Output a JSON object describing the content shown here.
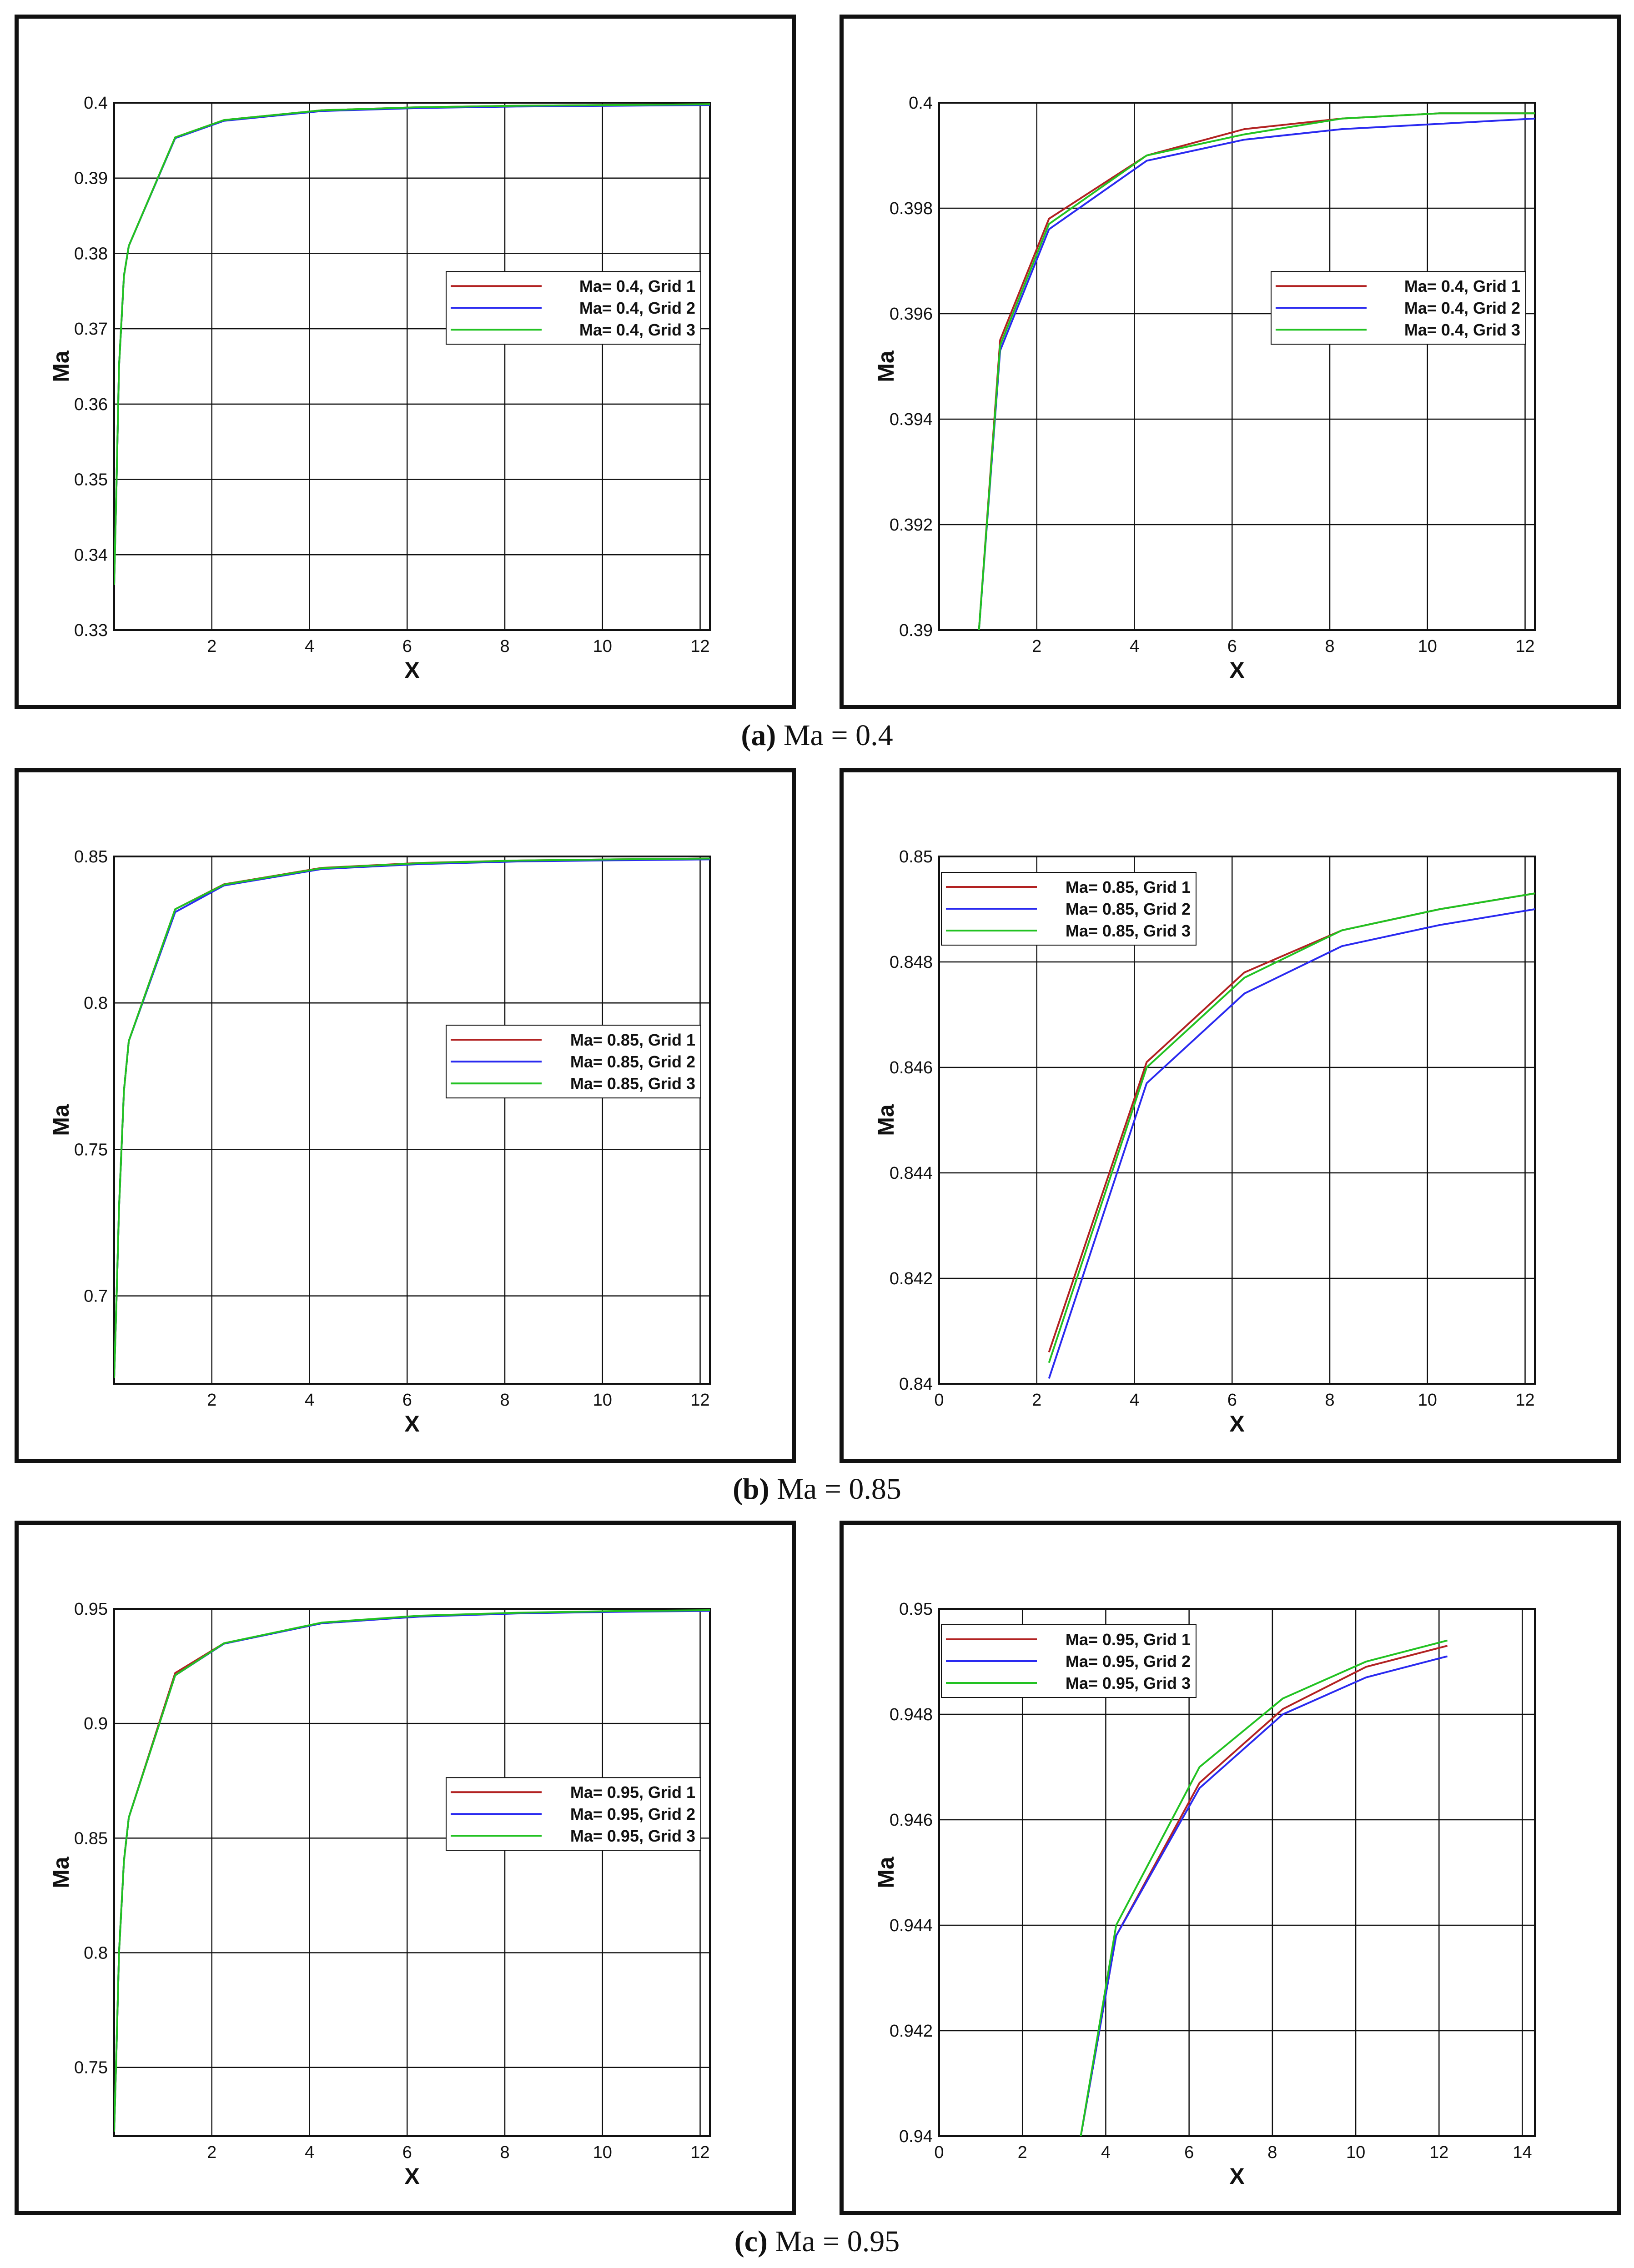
{
  "captions": [
    {
      "letter": "(a)",
      "text": " Ma = 0.4"
    },
    {
      "letter": "(b)",
      "text": " Ma = 0.85"
    },
    {
      "letter": "(c)",
      "text": " Ma = 0.95"
    }
  ],
  "colors": {
    "grid1": "#b22222",
    "grid2": "#2a2af0",
    "grid3": "#22c222"
  },
  "chart_data": [
    {
      "type": "line",
      "xlabel": "X",
      "ylabel": "Ma",
      "xlim": [
        0,
        12.2
      ],
      "ylim": [
        0.33,
        0.4
      ],
      "xticks": [
        "2",
        "4",
        "6",
        "8",
        "10",
        "12"
      ],
      "xtick_values": [
        2,
        4,
        6,
        8,
        10,
        12
      ],
      "yticks": [
        "0.33",
        "0.34",
        "0.35",
        "0.36",
        "0.37",
        "0.38",
        "0.39",
        "0.4"
      ],
      "ytick_values": [
        0.33,
        0.34,
        0.35,
        0.36,
        0.37,
        0.38,
        0.39,
        0.4
      ],
      "legend_position": "right-middle",
      "series": [
        {
          "name": "Ma= 0.4, Grid 1",
          "color": "#b22222",
          "x": [
            0.0,
            0.05,
            0.1,
            0.2,
            0.3,
            1.25,
            2.25,
            4.25,
            6.25,
            8.25,
            10.25,
            12.2
          ],
          "y": [
            0.336,
            0.35,
            0.365,
            0.377,
            0.381,
            0.3954,
            0.3977,
            0.399,
            0.3994,
            0.3996,
            0.3997,
            0.3998
          ]
        },
        {
          "name": "Ma= 0.4, Grid 2",
          "color": "#2a2af0",
          "x": [
            0.0,
            0.05,
            0.1,
            0.2,
            0.3,
            1.25,
            2.25,
            4.25,
            6.25,
            8.25,
            10.25,
            12.2
          ],
          "y": [
            0.336,
            0.35,
            0.365,
            0.377,
            0.381,
            0.3953,
            0.3976,
            0.3989,
            0.3993,
            0.3995,
            0.3996,
            0.3997
          ]
        },
        {
          "name": "Ma= 0.4, Grid 3",
          "color": "#22c222",
          "x": [
            0.0,
            0.05,
            0.1,
            0.2,
            0.3,
            1.25,
            2.25,
            4.25,
            6.25,
            8.25,
            10.25,
            12.2
          ],
          "y": [
            0.336,
            0.35,
            0.365,
            0.377,
            0.381,
            0.3954,
            0.3977,
            0.399,
            0.3994,
            0.3996,
            0.3997,
            0.3998
          ]
        }
      ]
    },
    {
      "type": "line",
      "xlabel": "X",
      "ylabel": "Ma",
      "xlim": [
        0,
        12.2
      ],
      "ylim": [
        0.39,
        0.4
      ],
      "xticks": [
        "2",
        "4",
        "6",
        "8",
        "10",
        "12"
      ],
      "xtick_values": [
        2,
        4,
        6,
        8,
        10,
        12
      ],
      "yticks": [
        "0.39",
        "0.392",
        "0.394",
        "0.396",
        "0.398",
        "0.4"
      ],
      "ytick_values": [
        0.39,
        0.392,
        0.394,
        0.396,
        0.398,
        0.4
      ],
      "legend_position": "right-middle",
      "series": [
        {
          "name": "Ma= 0.4, Grid 1",
          "color": "#b22222",
          "x": [
            0.8,
            1.25,
            2.25,
            4.25,
            6.25,
            8.25,
            10.25,
            12.2
          ],
          "y": [
            0.3898,
            0.3955,
            0.3978,
            0.399,
            0.3995,
            0.3997,
            0.3998,
            0.3998
          ]
        },
        {
          "name": "Ma= 0.4, Grid 2",
          "color": "#2a2af0",
          "x": [
            0.8,
            1.25,
            2.25,
            4.25,
            6.25,
            8.25,
            10.25,
            12.2
          ],
          "y": [
            0.3898,
            0.3953,
            0.3976,
            0.3989,
            0.3993,
            0.3995,
            0.3996,
            0.3997
          ]
        },
        {
          "name": "Ma= 0.4, Grid 3",
          "color": "#22c222",
          "x": [
            0.8,
            1.25,
            2.25,
            4.25,
            6.25,
            8.25,
            10.25,
            12.2
          ],
          "y": [
            0.3898,
            0.3954,
            0.3977,
            0.399,
            0.3994,
            0.3997,
            0.3998,
            0.3998
          ]
        }
      ]
    },
    {
      "type": "line",
      "xlabel": "X",
      "ylabel": "Ma",
      "xlim": [
        0,
        12.2
      ],
      "ylim": [
        0.67,
        0.85
      ],
      "xticks": [
        "2",
        "4",
        "6",
        "8",
        "10",
        "12"
      ],
      "xtick_values": [
        2,
        4,
        6,
        8,
        10,
        12
      ],
      "yticks": [
        "0.7",
        "0.75",
        "0.8",
        "0.85"
      ],
      "ytick_values": [
        0.7,
        0.75,
        0.8,
        0.85
      ],
      "legend_position": "right-middle",
      "series": [
        {
          "name": "Ma= 0.85, Grid 1",
          "color": "#b22222",
          "x": [
            0.0,
            0.05,
            0.1,
            0.2,
            0.3,
            1.25,
            2.25,
            4.25,
            6.25,
            8.25,
            10.25,
            12.2
          ],
          "y": [
            0.672,
            0.7,
            0.73,
            0.77,
            0.787,
            0.832,
            0.8405,
            0.8461,
            0.8478,
            0.8486,
            0.849,
            0.8493
          ]
        },
        {
          "name": "Ma= 0.85, Grid 2",
          "color": "#2a2af0",
          "x": [
            0.0,
            0.05,
            0.1,
            0.2,
            0.3,
            1.25,
            2.25,
            4.25,
            6.25,
            8.25,
            10.25,
            12.2
          ],
          "y": [
            0.672,
            0.7,
            0.73,
            0.77,
            0.787,
            0.831,
            0.8401,
            0.8457,
            0.8474,
            0.8483,
            0.8487,
            0.849
          ]
        },
        {
          "name": "Ma= 0.85, Grid 3",
          "color": "#22c222",
          "x": [
            0.0,
            0.05,
            0.1,
            0.2,
            0.3,
            1.25,
            2.25,
            4.25,
            6.25,
            8.25,
            10.25,
            12.2
          ],
          "y": [
            0.672,
            0.7,
            0.73,
            0.77,
            0.787,
            0.832,
            0.8404,
            0.846,
            0.8477,
            0.8486,
            0.849,
            0.8493
          ]
        }
      ]
    },
    {
      "type": "line",
      "xlabel": "X",
      "ylabel": "Ma",
      "xlim": [
        0,
        12.2
      ],
      "ylim": [
        0.84,
        0.85
      ],
      "xticks": [
        "0",
        "2",
        "4",
        "6",
        "8",
        "10",
        "12"
      ],
      "xtick_values": [
        0,
        2,
        4,
        6,
        8,
        10,
        12
      ],
      "yticks": [
        "0.84",
        "0.842",
        "0.844",
        "0.846",
        "0.848",
        "0.85"
      ],
      "ytick_values": [
        0.84,
        0.842,
        0.844,
        0.846,
        0.848,
        0.85
      ],
      "legend_position": "top-left",
      "series": [
        {
          "name": "Ma= 0.85, Grid 1",
          "color": "#b22222",
          "x": [
            2.25,
            4.25,
            6.25,
            8.25,
            10.25,
            12.2
          ],
          "y": [
            0.8406,
            0.8461,
            0.8478,
            0.8486,
            0.849,
            0.8493
          ]
        },
        {
          "name": "Ma= 0.85, Grid 2",
          "color": "#2a2af0",
          "x": [
            2.25,
            4.25,
            6.25,
            8.25,
            10.25,
            12.2
          ],
          "y": [
            0.8401,
            0.8457,
            0.8474,
            0.8483,
            0.8487,
            0.849
          ]
        },
        {
          "name": "Ma= 0.85, Grid 3",
          "color": "#22c222",
          "x": [
            2.25,
            4.25,
            6.25,
            8.25,
            10.25,
            12.2
          ],
          "y": [
            0.8404,
            0.846,
            0.8477,
            0.8486,
            0.849,
            0.8493
          ]
        }
      ]
    },
    {
      "type": "line",
      "xlabel": "X",
      "ylabel": "Ma",
      "xlim": [
        0,
        12.2
      ],
      "ylim": [
        0.72,
        0.95
      ],
      "xticks": [
        "2",
        "4",
        "6",
        "8",
        "10",
        "12"
      ],
      "xtick_values": [
        2,
        4,
        6,
        8,
        10,
        12
      ],
      "yticks": [
        "0.75",
        "0.8",
        "0.85",
        "0.9",
        "0.95"
      ],
      "ytick_values": [
        0.75,
        0.8,
        0.85,
        0.9,
        0.95
      ],
      "legend_position": "right-middle",
      "series": [
        {
          "name": "Ma= 0.95, Grid 1",
          "color": "#b22222",
          "x": [
            0.0,
            0.05,
            0.1,
            0.2,
            0.3,
            1.25,
            2.25,
            4.25,
            6.25,
            8.25,
            10.25,
            12.2
          ],
          "y": [
            0.722,
            0.76,
            0.8,
            0.84,
            0.859,
            0.922,
            0.935,
            0.9437,
            0.9467,
            0.9481,
            0.9489,
            0.9493
          ]
        },
        {
          "name": "Ma= 0.95, Grid 2",
          "color": "#2a2af0",
          "x": [
            0.0,
            0.05,
            0.1,
            0.2,
            0.3,
            1.25,
            2.25,
            4.25,
            6.25,
            8.25,
            10.25,
            12.2
          ],
          "y": [
            0.722,
            0.76,
            0.8,
            0.84,
            0.859,
            0.921,
            0.9348,
            0.9437,
            0.9466,
            0.948,
            0.9487,
            0.9491
          ]
        },
        {
          "name": "Ma= 0.95, Grid 3",
          "color": "#22c222",
          "x": [
            0.0,
            0.05,
            0.1,
            0.2,
            0.3,
            1.25,
            2.25,
            4.25,
            6.25,
            8.25,
            10.25,
            12.2
          ],
          "y": [
            0.722,
            0.76,
            0.8,
            0.84,
            0.859,
            0.921,
            0.935,
            0.944,
            0.947,
            0.9483,
            0.949,
            0.9494
          ]
        }
      ]
    },
    {
      "type": "line",
      "xlabel": "X",
      "ylabel": "Ma",
      "xlim": [
        0,
        14.3
      ],
      "ylim": [
        0.94,
        0.95
      ],
      "xticks": [
        "0",
        "2",
        "4",
        "6",
        "8",
        "10",
        "12",
        "14"
      ],
      "xtick_values": [
        0,
        2,
        4,
        6,
        8,
        10,
        12,
        14
      ],
      "yticks": [
        "0.94",
        "0.942",
        "0.944",
        "0.946",
        "0.948",
        "0.95"
      ],
      "ytick_values": [
        0.94,
        0.942,
        0.944,
        0.946,
        0.948,
        0.95
      ],
      "legend_position": "top-left",
      "series": [
        {
          "name": "Ma= 0.95, Grid 1",
          "color": "#b22222",
          "x": [
            3.4,
            4.25,
            6.25,
            8.25,
            10.25,
            12.2
          ],
          "y": [
            0.94,
            0.9438,
            0.9467,
            0.9481,
            0.9489,
            0.9493
          ]
        },
        {
          "name": "Ma= 0.95, Grid 2",
          "color": "#2a2af0",
          "x": [
            3.4,
            4.25,
            6.25,
            8.25,
            10.25,
            12.2
          ],
          "y": [
            0.94,
            0.9438,
            0.9466,
            0.948,
            0.9487,
            0.9491
          ]
        },
        {
          "name": "Ma= 0.95, Grid 3",
          "color": "#22c222",
          "x": [
            3.4,
            4.25,
            6.25,
            8.25,
            10.25,
            12.2
          ],
          "y": [
            0.94,
            0.944,
            0.947,
            0.9483,
            0.949,
            0.9494
          ]
        }
      ]
    }
  ]
}
